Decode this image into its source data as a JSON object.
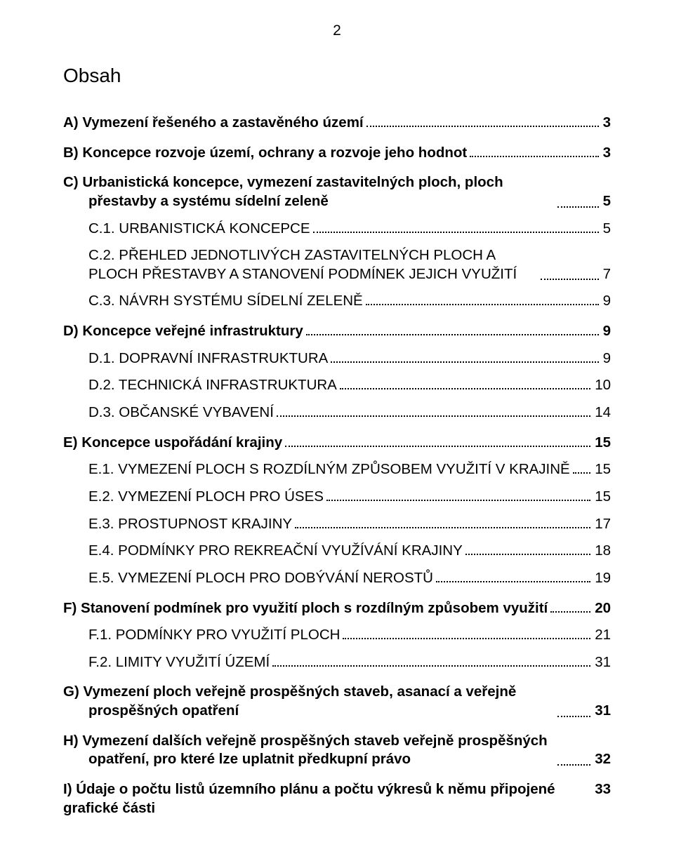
{
  "pageNumber": "2",
  "heading": "Obsah",
  "toc": [
    {
      "kind": "section",
      "label": "A) Vymezení řešeného a zastavěného území",
      "page": "3"
    },
    {
      "kind": "section",
      "label": "B) Koncepce rozvoje území, ochrany a rozvoje jeho hodnot",
      "page": "3"
    },
    {
      "kind": "section",
      "wrap": true,
      "label": "C) Urbanistická koncepce, vymezení zastavitelných ploch, ploch přestavby a systému sídelní zeleně",
      "page": "5"
    },
    {
      "kind": "sub",
      "label": "C.1. URBANISTICKÁ KONCEPCE",
      "page": "5"
    },
    {
      "kind": "sub",
      "wrap": true,
      "label": "C.2. PŘEHLED JEDNOTLIVÝCH ZASTAVITELNÝCH PLOCH A PLOCH PŘESTAVBY A STANOVENÍ PODMÍNEK JEJICH VYUŽITÍ",
      "page": "7"
    },
    {
      "kind": "sub",
      "label": "C.3. NÁVRH SYSTÉMU SÍDELNÍ ZELENĚ",
      "page": "9"
    },
    {
      "kind": "section",
      "label": "D) Koncepce veřejné infrastruktury",
      "page": "9"
    },
    {
      "kind": "sub",
      "label": "D.1. DOPRAVNÍ INFRASTRUKTURA",
      "page": "9"
    },
    {
      "kind": "sub",
      "label": "D.2. TECHNICKÁ INFRASTRUKTURA",
      "page": "10"
    },
    {
      "kind": "sub",
      "label": "D.3. OBČANSKÉ VYBAVENÍ",
      "page": "14"
    },
    {
      "kind": "section",
      "label": "E) Koncepce uspořádání krajiny",
      "page": "15"
    },
    {
      "kind": "sub",
      "label": "E.1. VYMEZENÍ PLOCH S ROZDÍLNÝM ZPŮSOBEM VYUŽITÍ V KRAJINĚ",
      "page": "15"
    },
    {
      "kind": "sub",
      "label": "E.2. VYMEZENÍ PLOCH PRO ÚSES",
      "page": "15"
    },
    {
      "kind": "sub",
      "label": "E.3. PROSTUPNOST KRAJINY",
      "page": "17"
    },
    {
      "kind": "sub",
      "label": "E.4. PODMÍNKY PRO REKREAČNÍ VYUŽÍVÁNÍ KRAJINY",
      "page": "18"
    },
    {
      "kind": "sub",
      "label": "E.5. VYMEZENÍ PLOCH PRO DOBÝVÁNÍ NEROSTŮ",
      "page": "19"
    },
    {
      "kind": "section",
      "label": "F) Stanovení podmínek pro využití ploch s rozdílným způsobem využití",
      "page": "20"
    },
    {
      "kind": "sub",
      "label": "F.1. PODMÍNKY PRO VYUŽITÍ PLOCH",
      "page": "21"
    },
    {
      "kind": "sub",
      "label": "F.2. LIMITY VYUŽITÍ ÚZEMÍ",
      "page": "31"
    },
    {
      "kind": "section",
      "wrap": true,
      "label": "G) Vymezení ploch veřejně prospěšných staveb, asanací a veřejně prospěšných opatření",
      "page": "31"
    },
    {
      "kind": "section",
      "wrap": true,
      "label": "H) Vymezení dalších veřejně prospěšných staveb veřejně prospěšných opatření, pro které lze uplatnit předkupní právo",
      "page": "32"
    },
    {
      "kind": "section",
      "label": "I) Údaje o počtu listů územního plánu a počtu výkresů k němu připojené grafické části",
      "page": "33",
      "noLeader": true
    }
  ],
  "style": {
    "pageWidth": 960,
    "pageHeight": 1113,
    "background": "#ffffff",
    "textColor": "#000000",
    "fontFamily": "Arial",
    "headingFontSize": 28,
    "bodyFontSize": 20.5,
    "leaderStyle": "dotted",
    "leaderColor": "#000000"
  }
}
